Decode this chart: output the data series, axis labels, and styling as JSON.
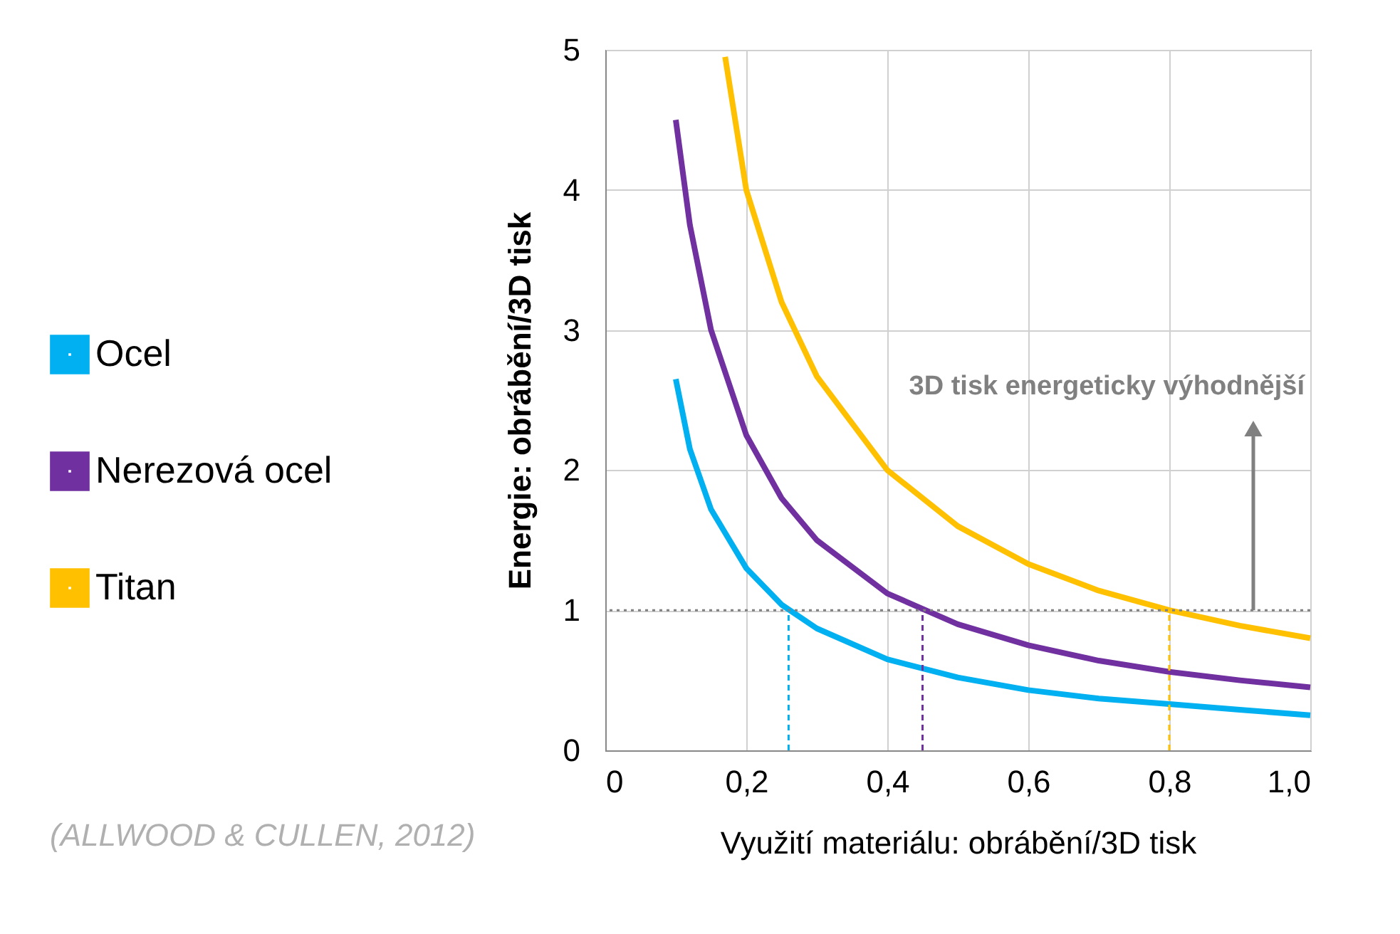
{
  "chart_data": {
    "type": "line",
    "xlabel": "Využití materiálu: obrábění/3D tisk",
    "ylabel": "Energie: obrábění/3D tisk",
    "xlim": [
      0,
      1.0
    ],
    "ylim": [
      0,
      5
    ],
    "xticks": [
      0,
      {
        "value": 0.2,
        "label": "0,2"
      },
      {
        "value": 0.4,
        "label": "0,4"
      },
      {
        "value": 0.6,
        "label": "0,6"
      },
      {
        "value": 0.8,
        "label": "0,8"
      },
      {
        "value": 1.0,
        "label": "1,0"
      }
    ],
    "yticks": [
      0,
      1,
      2,
      3,
      4,
      5
    ],
    "grid": true,
    "legend": "left",
    "marker": "none",
    "line_style": "solid",
    "series": [
      {
        "name": "Ocel",
        "color": "#00b0f0",
        "x": [
          0.1,
          0.12,
          0.15,
          0.2,
          0.25,
          0.3,
          0.4,
          0.5,
          0.6,
          0.7,
          0.8,
          0.9,
          1.0
        ],
        "values": [
          2.65,
          2.15,
          1.72,
          1.3,
          1.04,
          0.87,
          0.65,
          0.52,
          0.43,
          0.37,
          0.33,
          0.29,
          0.25
        ]
      },
      {
        "name": "Nerezová ocel",
        "color": "#7030a0",
        "x": [
          0.1,
          0.12,
          0.15,
          0.2,
          0.25,
          0.3,
          0.4,
          0.5,
          0.6,
          0.7,
          0.8,
          0.9,
          1.0
        ],
        "values": [
          4.5,
          3.75,
          3.0,
          2.25,
          1.8,
          1.5,
          1.12,
          0.9,
          0.75,
          0.64,
          0.56,
          0.5,
          0.45
        ]
      },
      {
        "name": "Titan",
        "color": "#ffc000",
        "x": [
          0.17,
          0.2,
          0.25,
          0.3,
          0.4,
          0.5,
          0.6,
          0.7,
          0.8,
          0.9,
          1.0
        ],
        "values": [
          4.95,
          4.0,
          3.2,
          2.67,
          2.0,
          1.6,
          1.33,
          1.14,
          1.0,
          0.89,
          0.8
        ]
      }
    ],
    "ref_lines": [
      {
        "axis": "y",
        "value": 1,
        "color": "#808080",
        "line_style": "dotted"
      },
      {
        "axis": "x",
        "value": 0.26,
        "color": "#00b0f0",
        "line_style": "dashed"
      },
      {
        "axis": "x",
        "value": 0.45,
        "color": "#7030a0",
        "line_style": "dashed"
      },
      {
        "axis": "x",
        "value": 0.8,
        "color": "#ffc000",
        "line_style": "dashed"
      }
    ],
    "annotations": [
      "3D tisk energeticky výhodnější",
      "(ALLWOOD & CULLEN, 2012)"
    ]
  }
}
